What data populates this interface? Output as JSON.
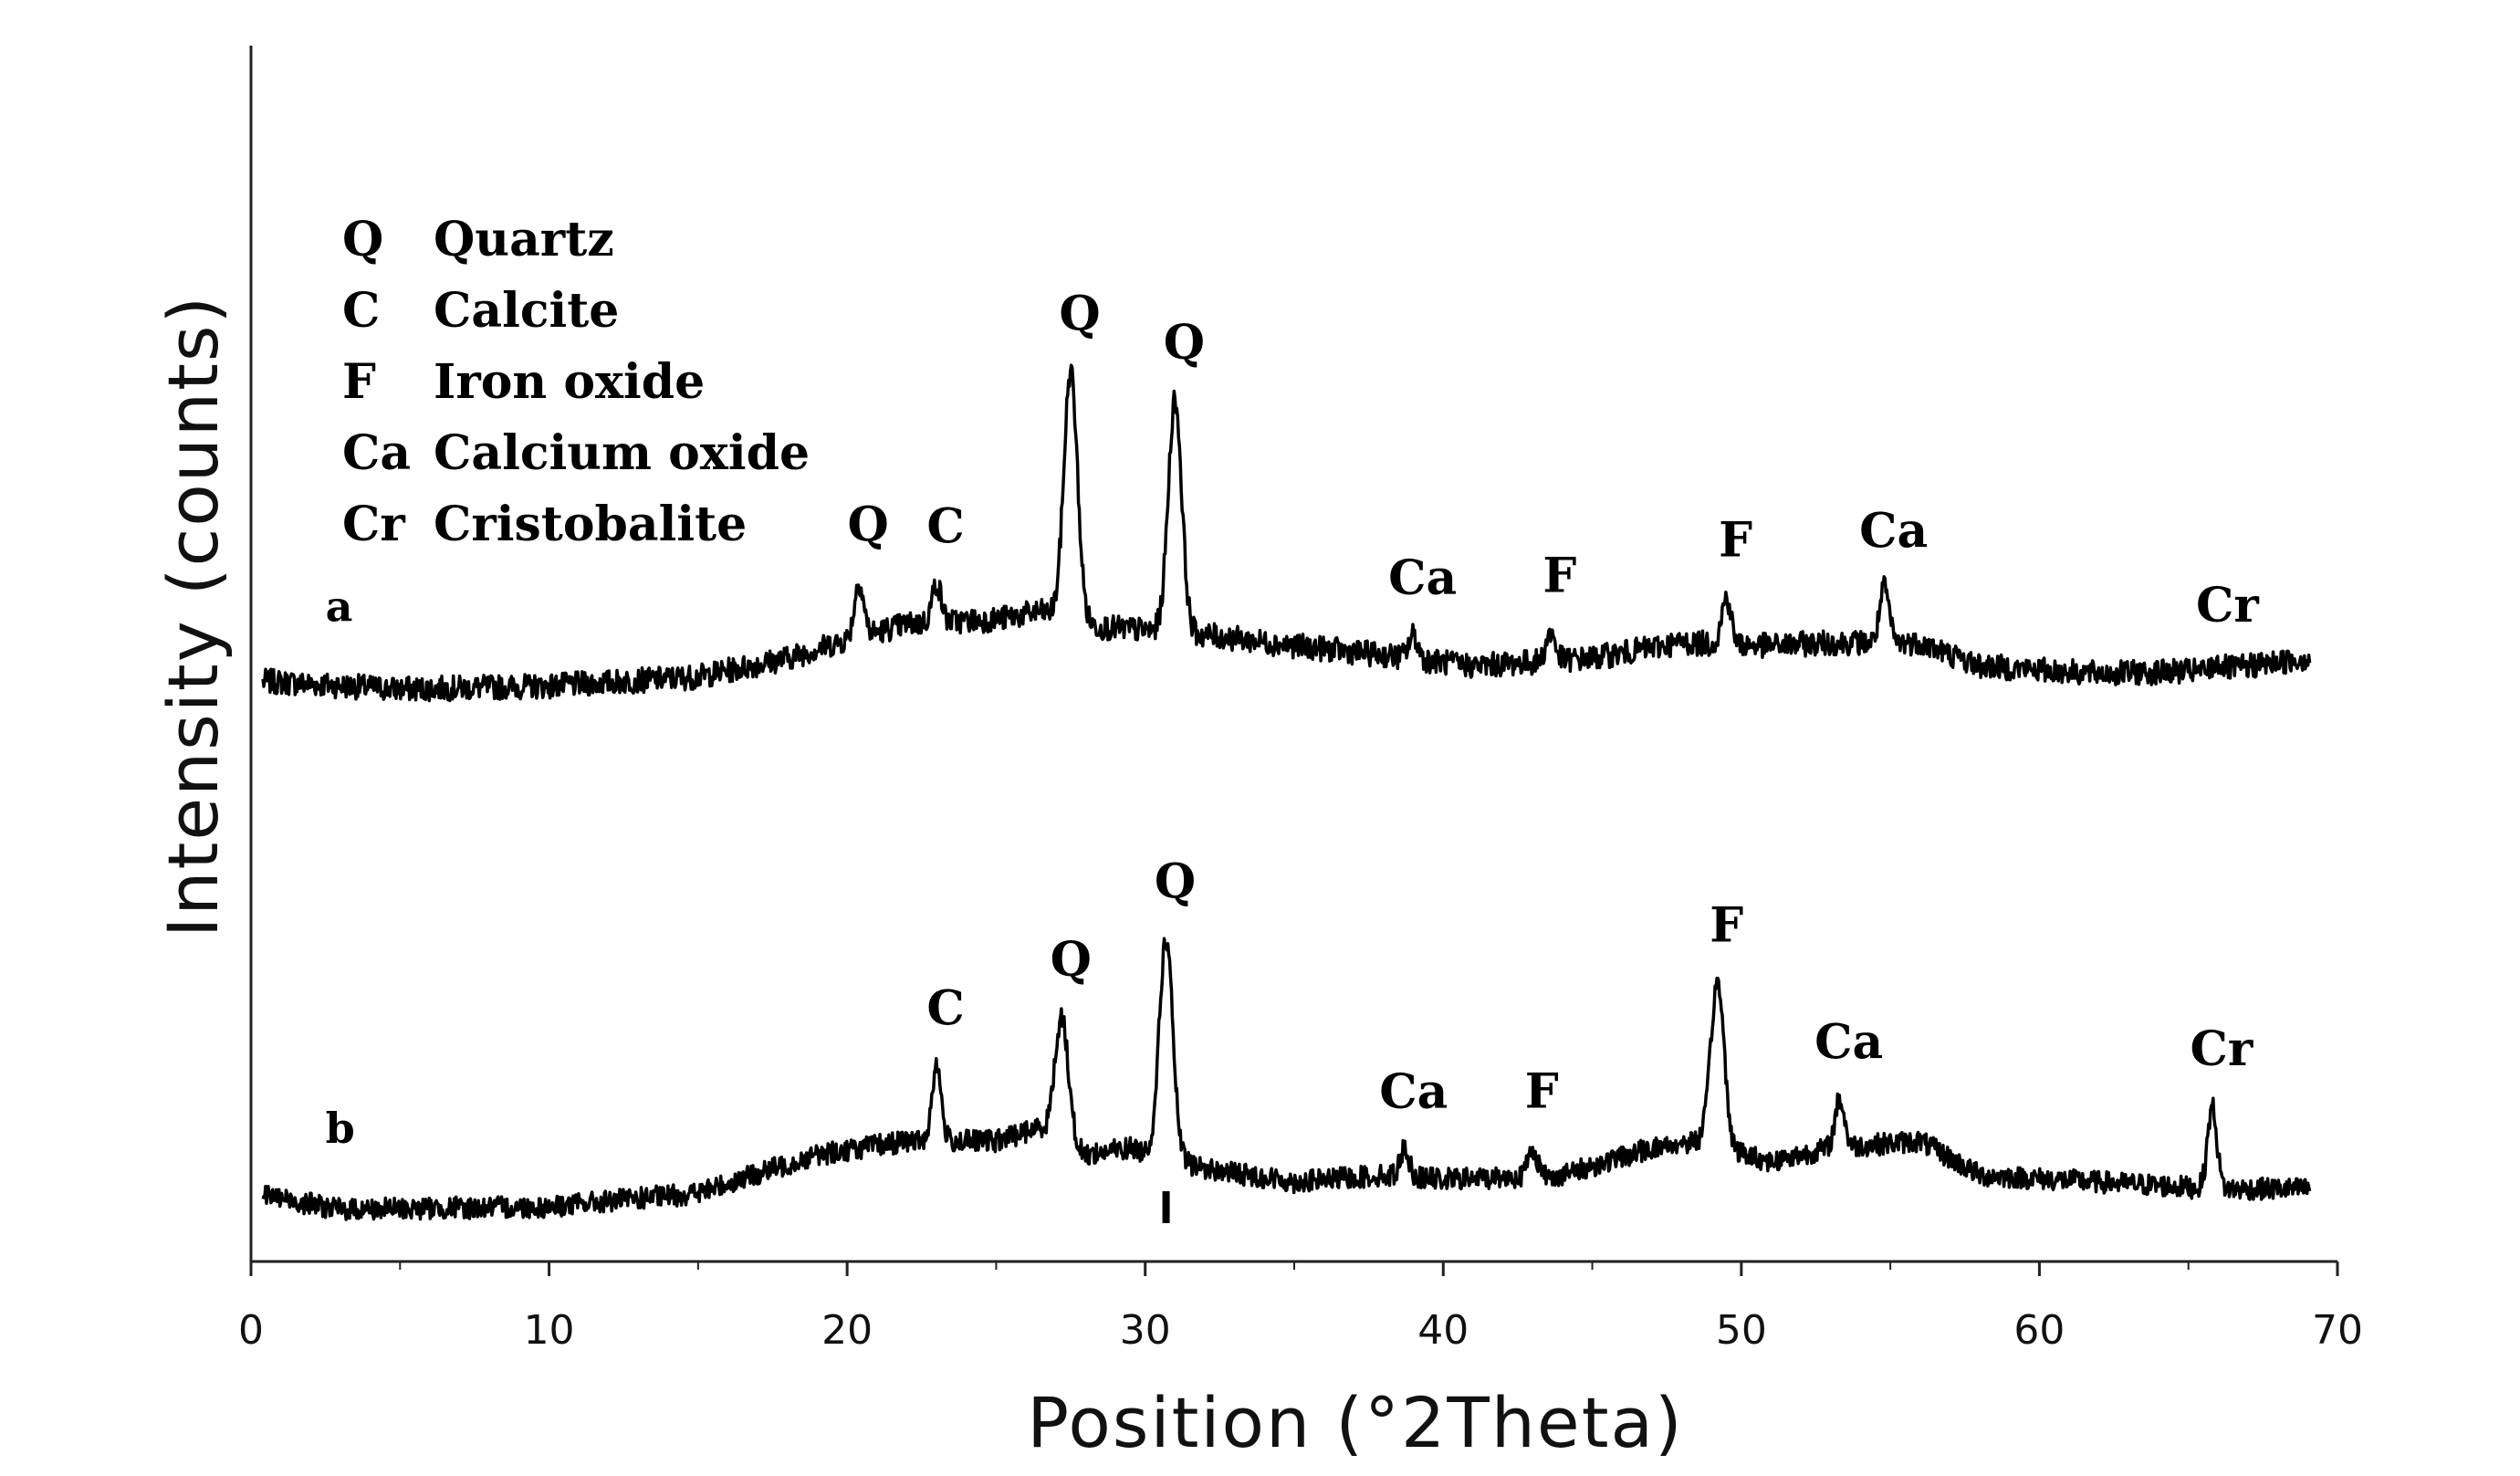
{
  "chart_data": {
    "type": "line",
    "xlabel": "Position (°2Theta)",
    "ylabel": "Intensity (counts)",
    "xlim": [
      0,
      70
    ],
    "xticks": [
      0,
      10,
      20,
      30,
      40,
      50,
      60,
      70
    ],
    "grid": false,
    "legend_placement": "top-left",
    "legend": [
      {
        "symbol": "Q",
        "name": "Quartz"
      },
      {
        "symbol": "C",
        "name": "Calcite"
      },
      {
        "symbol": "F",
        "name": "Iron oxide"
      },
      {
        "symbol": "Ca",
        "name": "Calcium oxide"
      },
      {
        "symbol": "Cr",
        "name": "Cristobalite"
      }
    ],
    "series": [
      {
        "trace_label": "a",
        "baseline": [
          [
            0.5,
            0.05
          ],
          [
            5,
            0.0
          ],
          [
            10,
            0.02
          ],
          [
            15,
            0.08
          ],
          [
            18,
            0.2
          ],
          [
            20,
            0.32
          ],
          [
            22,
            0.42
          ],
          [
            25,
            0.45
          ],
          [
            26.5,
            0.5
          ],
          [
            28.5,
            0.4
          ],
          [
            30,
            0.38
          ],
          [
            32,
            0.35
          ],
          [
            35,
            0.28
          ],
          [
            38,
            0.22
          ],
          [
            41,
            0.15
          ],
          [
            45,
            0.2
          ],
          [
            48,
            0.3
          ],
          [
            51,
            0.28
          ],
          [
            53,
            0.3
          ],
          [
            56,
            0.3
          ],
          [
            58,
            0.15
          ],
          [
            62,
            0.1
          ],
          [
            66,
            0.12
          ],
          [
            69,
            0.2
          ]
        ],
        "peaks": [
          {
            "label": "Q",
            "position": 20.4,
            "height": 0.35
          },
          {
            "label": "C",
            "position": 23.0,
            "height": 0.25
          },
          {
            "label": "Q",
            "position": 27.5,
            "height": 1.6
          },
          {
            "label": "Q",
            "position": 31.0,
            "height": 1.5
          },
          {
            "label": "Ca",
            "position": 39.0,
            "height": 0.15
          },
          {
            "label": "F",
            "position": 43.6,
            "height": 0.18
          },
          {
            "label": "F",
            "position": 49.5,
            "height": 0.3
          },
          {
            "label": "Ca",
            "position": 54.8,
            "height": 0.35
          },
          {
            "label": "Cr",
            "position": 66.0,
            "height": 0.05
          }
        ]
      },
      {
        "trace_label": "b",
        "baseline": [
          [
            0.5,
            0.1
          ],
          [
            3,
            0.0
          ],
          [
            10,
            0.02
          ],
          [
            15,
            0.12
          ],
          [
            19,
            0.4
          ],
          [
            22,
            0.5
          ],
          [
            25,
            0.5
          ],
          [
            26.5,
            0.6
          ],
          [
            28,
            0.4
          ],
          [
            29.5,
            0.45
          ],
          [
            32,
            0.3
          ],
          [
            35,
            0.2
          ],
          [
            38,
            0.25
          ],
          [
            40,
            0.22
          ],
          [
            44,
            0.25
          ],
          [
            47,
            0.45
          ],
          [
            48.5,
            0.5
          ],
          [
            51,
            0.35
          ],
          [
            53,
            0.45
          ],
          [
            56,
            0.5
          ],
          [
            58,
            0.25
          ],
          [
            62,
            0.2
          ],
          [
            66,
            0.15
          ],
          [
            69,
            0.15
          ]
        ],
        "peaks": [
          {
            "label": "C",
            "position": 23.0,
            "height": 0.55
          },
          {
            "label": "Q",
            "position": 27.2,
            "height": 0.9
          },
          {
            "label": "Q",
            "position": 30.7,
            "height": 1.6
          },
          {
            "label": "Ca",
            "position": 38.7,
            "height": 0.2
          },
          {
            "label": "F",
            "position": 43.0,
            "height": 0.2
          },
          {
            "label": "F",
            "position": 49.2,
            "height": 1.2
          },
          {
            "label": "Ca",
            "position": 53.3,
            "height": 0.35
          },
          {
            "label": "Cr",
            "position": 65.8,
            "height": 0.6
          }
        ]
      }
    ]
  }
}
